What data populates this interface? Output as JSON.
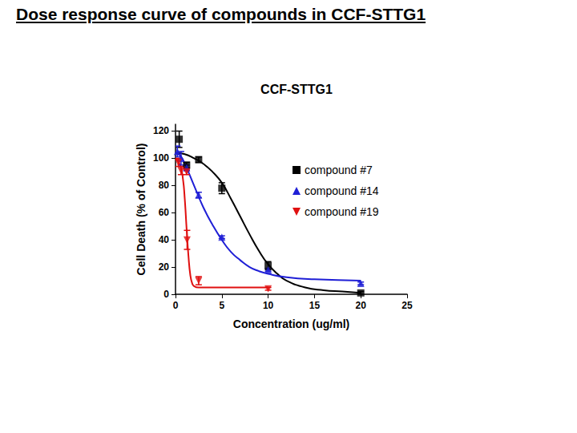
{
  "page_title": "Dose response curve of compounds in CCF-STTG1",
  "chart_data": {
    "type": "scatter",
    "title": "CCF-STTG1",
    "x_label": "Concentration (ug/ml)",
    "y_label": "Cell Death (% of Control)",
    "xlim": [
      0,
      25
    ],
    "xticks": [
      0,
      5,
      10,
      15,
      20,
      25
    ],
    "ylim": [
      0,
      125
    ],
    "yticks": [
      0,
      20,
      40,
      60,
      80,
      100,
      120
    ],
    "grid": false,
    "legend": "right",
    "series": [
      {
        "name": "compound #7",
        "color": "#000000",
        "marker": "square",
        "x": [
          0.4,
          1.2,
          2.5,
          5,
          10,
          20
        ],
        "values": [
          114,
          95,
          99,
          78,
          21,
          1
        ],
        "errors": [
          6,
          2,
          2,
          4,
          3,
          1
        ],
        "curve_x": [
          0,
          1,
          2,
          3,
          4,
          5,
          6,
          7,
          8,
          9,
          10,
          11,
          12,
          14,
          16,
          18,
          20
        ],
        "curve_values": [
          104,
          103,
          100,
          96,
          90,
          82,
          70,
          57,
          44,
          32,
          22,
          15,
          10,
          5,
          3,
          2,
          1
        ]
      },
      {
        "name": "compound #14",
        "color": "#1f1fd6",
        "marker": "triangle",
        "x": [
          0.2,
          0.6,
          1.2,
          2.5,
          5,
          10,
          20
        ],
        "values": [
          105,
          100,
          93,
          73,
          42,
          18,
          8
        ],
        "errors": [
          4,
          5,
          2,
          2,
          1,
          1,
          1
        ],
        "curve_x": [
          0,
          0.5,
          1,
          2,
          3,
          4,
          5,
          6,
          7,
          8,
          9,
          10,
          12,
          15,
          20
        ],
        "curve_values": [
          104,
          102,
          96,
          80,
          64,
          51,
          40,
          31,
          25,
          20,
          17,
          15,
          12.5,
          11,
          10
        ]
      },
      {
        "name": "compound #19",
        "color": "#e01010",
        "marker": "triangle_down",
        "x": [
          0.3,
          0.6,
          1.2,
          1.25,
          2.5,
          10
        ],
        "values": [
          97,
          91,
          90,
          40,
          10,
          4
        ],
        "errors": [
          3,
          3,
          2,
          7,
          3,
          1
        ],
        "curve_x": [
          0,
          0.5,
          0.8,
          1,
          1.2,
          1.4,
          1.6,
          1.8,
          2,
          2.5,
          5,
          10
        ],
        "curve_values": [
          100,
          95,
          85,
          70,
          48,
          28,
          14,
          8,
          6,
          5,
          5,
          5
        ]
      }
    ]
  }
}
